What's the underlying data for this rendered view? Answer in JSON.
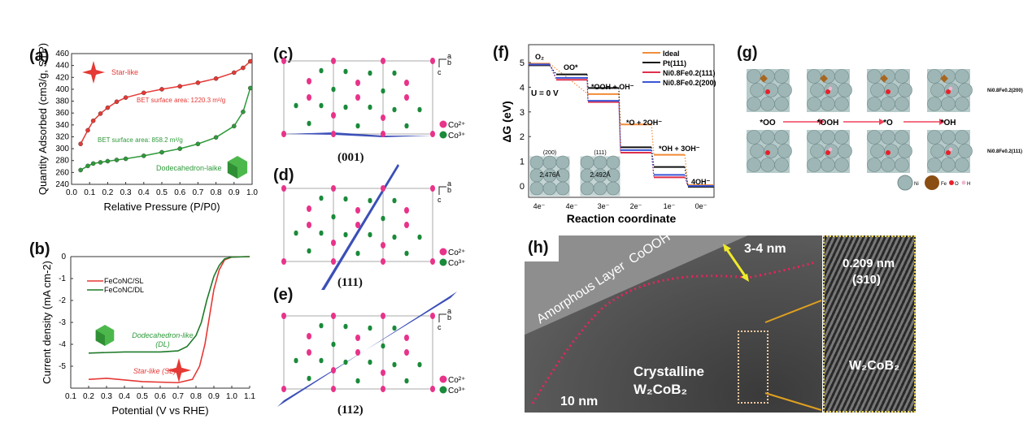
{
  "panels": {
    "a": "(a)",
    "b": "(b)",
    "c": "(c)",
    "d": "(d)",
    "e": "(e)",
    "f": "(f)",
    "g": "(g)",
    "h": "(h)"
  },
  "colors": {
    "red": "#e53935",
    "green": "#2e9a3a",
    "ideal": "#f28c38",
    "pt": "#111111",
    "ni111": "#e0304a",
    "ni200": "#3a56d6",
    "co2": "#e8338a",
    "co3": "#1a8a3a",
    "plane": "#3b4fb8"
  },
  "chart_data": [
    {
      "type": "scatter",
      "panel": "a",
      "xlabel": "Relative Pressure (P/P0)",
      "ylabel": "Quantity Adsorbed (cm3/g, STP)",
      "xlim": [
        0,
        1
      ],
      "ylim": [
        240,
        460
      ],
      "xticks": [
        "0.0",
        "0.1",
        "0.2",
        "0.3",
        "0.4",
        "0.5",
        "0.6",
        "0.7",
        "0.8",
        "0.9",
        "1.0"
      ],
      "yticks": [
        "240",
        "260",
        "280",
        "300",
        "320",
        "340",
        "360",
        "380",
        "400",
        "420",
        "440",
        "460"
      ],
      "annotations": [
        "Star-like",
        "BET surface area: 1220.3 m²/g",
        "BET surface area: 858.2 m²/g",
        "Dodecahedron-laike"
      ],
      "series": [
        {
          "name": "Star-like",
          "x": [
            0.05,
            0.09,
            0.12,
            0.16,
            0.2,
            0.25,
            0.3,
            0.4,
            0.5,
            0.6,
            0.7,
            0.8,
            0.9,
            0.95,
            0.99
          ],
          "y": [
            308,
            331,
            347,
            359,
            369,
            379,
            386,
            394,
            400,
            405,
            411,
            418,
            428,
            436,
            447
          ]
        },
        {
          "name": "Dodecahedron-laike",
          "x": [
            0.05,
            0.09,
            0.12,
            0.16,
            0.2,
            0.25,
            0.3,
            0.4,
            0.5,
            0.6,
            0.7,
            0.8,
            0.9,
            0.95,
            0.99
          ],
          "y": [
            264,
            271,
            275,
            277,
            279,
            281,
            283,
            288,
            294,
            300,
            308,
            319,
            338,
            362,
            402
          ]
        }
      ]
    },
    {
      "type": "line",
      "panel": "b",
      "xlabel": "Potential (V vs RHE)",
      "ylabel": "Current density (mA cm-2)",
      "xlim": [
        0.1,
        1.1
      ],
      "ylim": [
        -6,
        0
      ],
      "xticks": [
        "0.1",
        "0.2",
        "0.3",
        "0.4",
        "0.5",
        "0.6",
        "0.7",
        "0.8",
        "0.9",
        "1.0",
        "1.1"
      ],
      "yticks": [
        "0",
        "-1",
        "-2",
        "-3",
        "-4",
        "-5"
      ],
      "annotations": [
        "Dodecahedron-like",
        "(DL)",
        "Star-like (SL)"
      ],
      "series": [
        {
          "name": "FeCoNC/SL",
          "x": [
            0.2,
            0.3,
            0.5,
            0.7,
            0.78,
            0.82,
            0.85,
            0.88,
            0.9,
            0.93,
            0.96,
            1.0,
            1.1
          ],
          "y": [
            -5.6,
            -5.55,
            -5.7,
            -5.75,
            -5.6,
            -5.0,
            -4.0,
            -2.5,
            -1.5,
            -0.6,
            -0.15,
            -0.02,
            0
          ]
        },
        {
          "name": "FeCoNC/DL",
          "x": [
            0.2,
            0.4,
            0.6,
            0.7,
            0.75,
            0.8,
            0.83,
            0.86,
            0.9,
            0.93,
            0.96,
            1.0,
            1.1
          ],
          "y": [
            -4.4,
            -4.35,
            -4.35,
            -4.3,
            -4.1,
            -3.6,
            -3.0,
            -2.0,
            -0.9,
            -0.4,
            -0.1,
            -0.02,
            0
          ]
        }
      ]
    },
    {
      "type": "line",
      "panel": "f",
      "xlabel": "Reaction coordinate",
      "ylabel": "ΔG (eV)",
      "ylim": [
        -0.5,
        5.5
      ],
      "categories": [
        "4e⁻",
        "4e⁻",
        "3e⁻",
        "2e⁻",
        "1e⁻",
        "0e⁻"
      ],
      "yticks": [
        "0",
        "1",
        "2",
        "3",
        "4",
        "5"
      ],
      "step_labels": [
        "O₂",
        "OO*",
        "*OOH + OH⁻",
        "*O + 2OH⁻",
        "*OH + 3OH⁻",
        "4OH⁻"
      ],
      "note": "U = 0 V",
      "inset_labels": [
        "(200)",
        "2.476Å",
        "(111)",
        "2.492Å"
      ],
      "series": [
        {
          "name": "Ideal",
          "values": [
            4.92,
            null,
            3.69,
            2.46,
            1.23,
            0
          ]
        },
        {
          "name": "Pt(111)",
          "values": [
            4.92,
            4.55,
            4.0,
            1.6,
            0.8,
            0
          ]
        },
        {
          "name": "Ni0.8Fe0.2(111)",
          "values": [
            4.92,
            4.3,
            3.4,
            1.35,
            0.35,
            0
          ]
        },
        {
          "name": "Ni0.8Fe0.2(200)",
          "values": [
            4.92,
            4.38,
            3.45,
            1.45,
            0.45,
            0
          ]
        }
      ]
    }
  ],
  "crystal": {
    "planes": [
      "(001)",
      "(111)",
      "(112)"
    ],
    "axes": {
      "a": "a",
      "b": "b",
      "c": "c"
    },
    "legend": [
      "Co²⁺",
      "Co³⁺"
    ]
  },
  "g": {
    "steps": [
      "*OO",
      "*OOH",
      "*O",
      "*OH"
    ],
    "rows": [
      "Ni0.8Fe0.2(200)",
      "Ni0.8Fe0.2(111)"
    ],
    "legend": [
      "Ni",
      "Fe",
      "O",
      "H"
    ]
  },
  "h": {
    "amorphous": "Amorphous Layer  CoOOH",
    "thickness": "3-4 nm",
    "crystalline": "Crystalline",
    "phase": "W₂CoB₂",
    "scale": "10 nm",
    "spacing": "0.209 nm",
    "plane": "(310)",
    "inset_phase": "W₂CoB₂"
  }
}
